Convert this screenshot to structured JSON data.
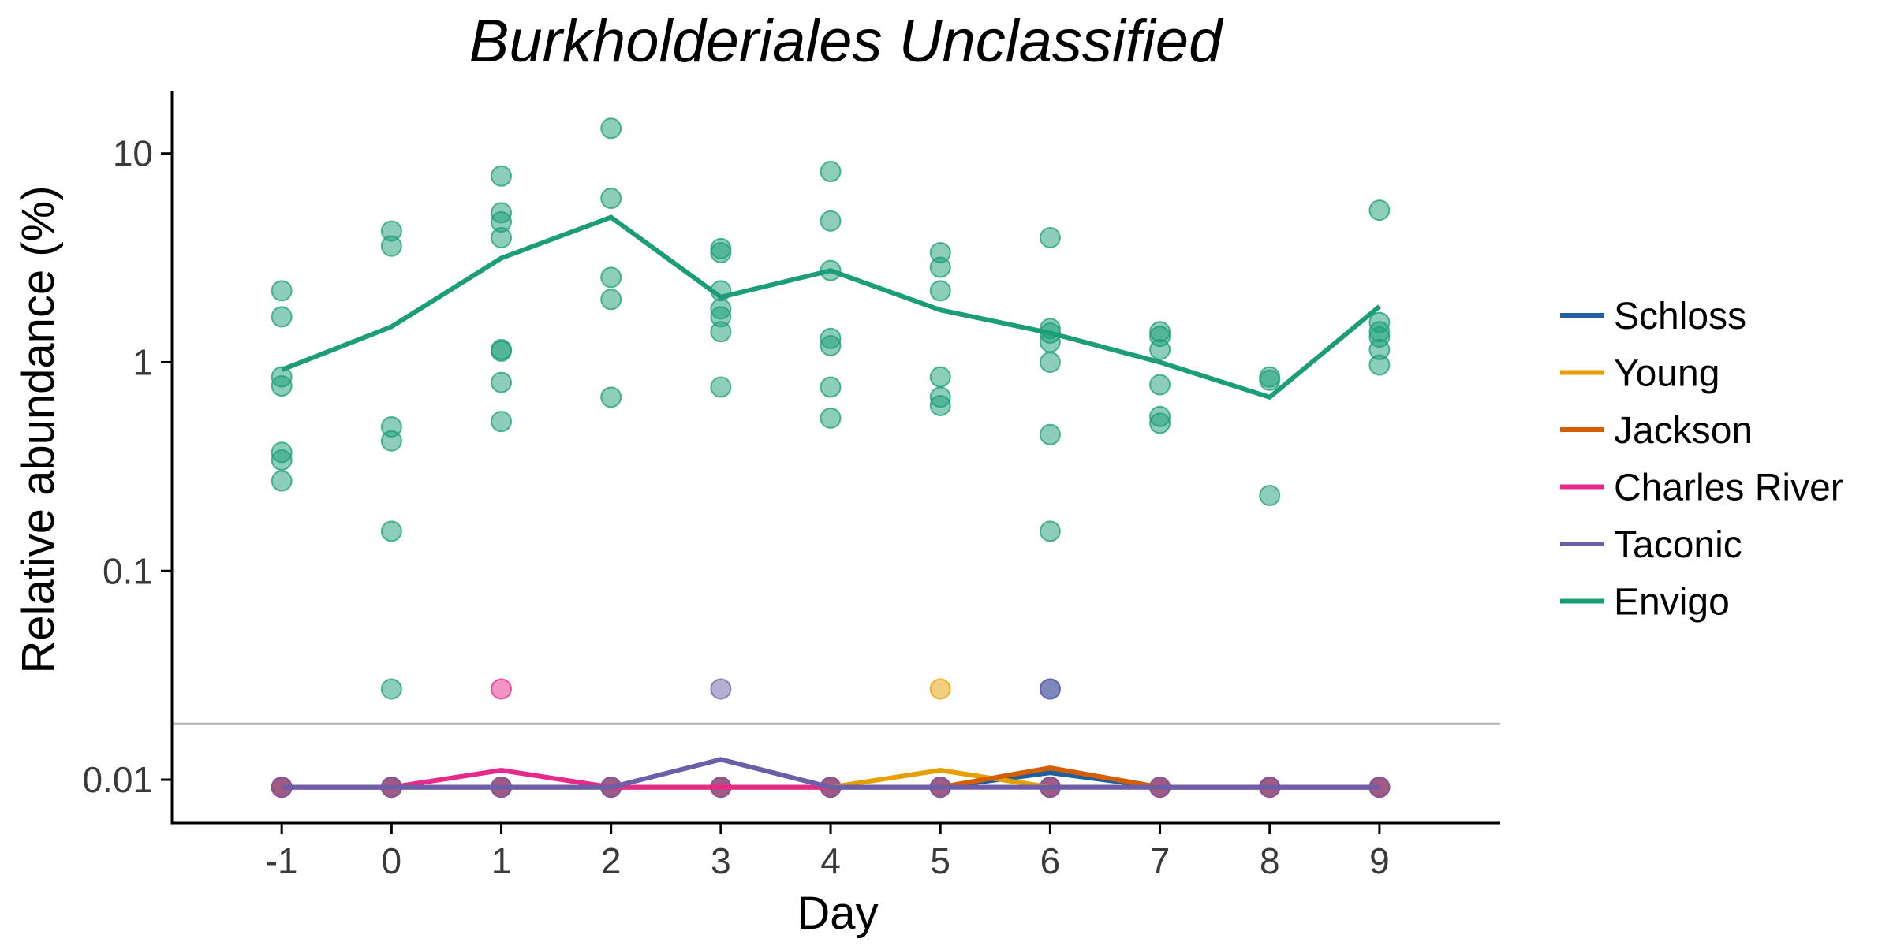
{
  "chart_data": {
    "type": "scatter",
    "title": "Burkholderiales Unclassified",
    "xlabel": "Day",
    "ylabel": "Relative abundance (%)",
    "x_ticks": [
      -1,
      0,
      1,
      2,
      3,
      4,
      5,
      6,
      7,
      8,
      9
    ],
    "y_scale": "log",
    "y_ticks": [
      0.01,
      0.1,
      1,
      10
    ],
    "y_tick_labels": [
      "0.01",
      "0.1",
      "1",
      "10"
    ],
    "xlim": [
      -2,
      10.1
    ],
    "ylim": [
      0.0062,
      20
    ],
    "limit_of_detection": 0.0185,
    "grid": false,
    "legend_position": "right",
    "series": [
      {
        "name": "Schloss",
        "color": "#1f5f9e",
        "line": [
          [
            -1,
            0.0092
          ],
          [
            0,
            0.0092
          ],
          [
            1,
            0.0092
          ],
          [
            2,
            0.0092
          ],
          [
            3,
            0.0092
          ],
          [
            4,
            0.0092
          ],
          [
            5,
            0.0092
          ],
          [
            6,
            0.0108
          ],
          [
            7,
            0.0092
          ],
          [
            8,
            0.0092
          ],
          [
            9,
            0.0092
          ]
        ],
        "points": [
          [
            -1,
            0.0092
          ],
          [
            0,
            0.0092
          ],
          [
            1,
            0.0092
          ],
          [
            2,
            0.0092
          ],
          [
            3,
            0.0092
          ],
          [
            4,
            0.0092
          ],
          [
            5,
            0.0092
          ],
          [
            6,
            0.0092
          ],
          [
            6,
            0.0272
          ],
          [
            7,
            0.0092
          ],
          [
            8,
            0.0092
          ],
          [
            9,
            0.0092
          ]
        ]
      },
      {
        "name": "Young",
        "color": "#e69f00",
        "line": [
          [
            -1,
            0.0092
          ],
          [
            0,
            0.0092
          ],
          [
            1,
            0.0092
          ],
          [
            2,
            0.0092
          ],
          [
            3,
            0.0092
          ],
          [
            4,
            0.0092
          ],
          [
            5,
            0.0111
          ],
          [
            6,
            0.0092
          ],
          [
            7,
            0.0092
          ],
          [
            8,
            0.0092
          ],
          [
            9,
            0.0092
          ]
        ],
        "points": [
          [
            -1,
            0.0092
          ],
          [
            0,
            0.0092
          ],
          [
            1,
            0.0092
          ],
          [
            2,
            0.0092
          ],
          [
            3,
            0.0092
          ],
          [
            4,
            0.0092
          ],
          [
            5,
            0.0092
          ],
          [
            5,
            0.0272
          ],
          [
            6,
            0.0092
          ],
          [
            7,
            0.0092
          ],
          [
            8,
            0.0092
          ],
          [
            9,
            0.0092
          ]
        ]
      },
      {
        "name": "Jackson",
        "color": "#d55e00",
        "line": [
          [
            -1,
            0.0092
          ],
          [
            0,
            0.0092
          ],
          [
            1,
            0.0092
          ],
          [
            2,
            0.0092
          ],
          [
            3,
            0.0092
          ],
          [
            4,
            0.0092
          ],
          [
            5,
            0.0092
          ],
          [
            6,
            0.0114
          ],
          [
            7,
            0.0092
          ],
          [
            8,
            0.0092
          ],
          [
            9,
            0.0092
          ]
        ],
        "points": [
          [
            -1,
            0.0092
          ],
          [
            0,
            0.0092
          ],
          [
            1,
            0.0092
          ],
          [
            2,
            0.0092
          ],
          [
            3,
            0.0092
          ],
          [
            4,
            0.0092
          ],
          [
            5,
            0.0092
          ],
          [
            6,
            0.0092
          ],
          [
            7,
            0.0092
          ],
          [
            8,
            0.0092
          ],
          [
            9,
            0.0092
          ]
        ]
      },
      {
        "name": "Charles River",
        "color": "#e7298a",
        "line": [
          [
            -1,
            0.0092
          ],
          [
            0,
            0.0092
          ],
          [
            1,
            0.0111
          ],
          [
            2,
            0.0092
          ],
          [
            3,
            0.0092
          ],
          [
            4,
            0.0092
          ],
          [
            5,
            0.0092
          ],
          [
            6,
            0.0092
          ],
          [
            7,
            0.0092
          ],
          [
            8,
            0.0092
          ],
          [
            9,
            0.0092
          ]
        ],
        "points": [
          [
            -1,
            0.0092
          ],
          [
            0,
            0.0092
          ],
          [
            1,
            0.0092
          ],
          [
            1,
            0.0272
          ],
          [
            2,
            0.0092
          ],
          [
            3,
            0.0092
          ],
          [
            4,
            0.0092
          ],
          [
            5,
            0.0092
          ],
          [
            6,
            0.0092
          ],
          [
            7,
            0.0092
          ],
          [
            8,
            0.0092
          ],
          [
            9,
            0.0092
          ]
        ]
      },
      {
        "name": "Taconic",
        "color": "#6a5fa8",
        "line": [
          [
            -1,
            0.0092
          ],
          [
            0,
            0.0092
          ],
          [
            1,
            0.0092
          ],
          [
            2,
            0.0092
          ],
          [
            3,
            0.0125
          ],
          [
            4,
            0.0092
          ],
          [
            5,
            0.0092
          ],
          [
            6,
            0.0092
          ],
          [
            7,
            0.0092
          ],
          [
            8,
            0.0092
          ],
          [
            9,
            0.0092
          ]
        ],
        "points": [
          [
            -1,
            0.0092
          ],
          [
            0,
            0.0092
          ],
          [
            1,
            0.0092
          ],
          [
            2,
            0.0092
          ],
          [
            3,
            0.0092
          ],
          [
            3,
            0.0272
          ],
          [
            4,
            0.0092
          ],
          [
            5,
            0.0092
          ],
          [
            6,
            0.0092
          ],
          [
            6,
            0.0272
          ],
          [
            7,
            0.0092
          ],
          [
            8,
            0.0092
          ],
          [
            9,
            0.0092
          ]
        ]
      },
      {
        "name": "Envigo",
        "color": "#1b9e77",
        "line": [
          [
            -1,
            0.92
          ],
          [
            0,
            1.48
          ],
          [
            1,
            3.15
          ],
          [
            2,
            4.95
          ],
          [
            3,
            2.05
          ],
          [
            4,
            2.75
          ],
          [
            5,
            1.78
          ],
          [
            6,
            1.38
          ],
          [
            7,
            1.0
          ],
          [
            8,
            0.68
          ],
          [
            9,
            1.85
          ]
        ],
        "points": [
          [
            -1,
            2.2
          ],
          [
            -1,
            1.65
          ],
          [
            -1,
            0.85
          ],
          [
            -1,
            0.77
          ],
          [
            -1,
            0.37
          ],
          [
            -1,
            0.34
          ],
          [
            -1,
            0.27
          ],
          [
            0,
            4.25
          ],
          [
            0,
            3.6
          ],
          [
            0,
            0.49
          ],
          [
            0,
            0.42
          ],
          [
            0,
            0.155
          ],
          [
            0,
            0.0272
          ],
          [
            1,
            7.8
          ],
          [
            1,
            5.2
          ],
          [
            1,
            4.7
          ],
          [
            1,
            3.95
          ],
          [
            1,
            1.15
          ],
          [
            1,
            1.13
          ],
          [
            1,
            0.8
          ],
          [
            1,
            0.52
          ],
          [
            2,
            13.2
          ],
          [
            2,
            6.1
          ],
          [
            2,
            2.55
          ],
          [
            2,
            2.0
          ],
          [
            2,
            0.68
          ],
          [
            3,
            3.5
          ],
          [
            3,
            3.35
          ],
          [
            3,
            2.2
          ],
          [
            3,
            1.8
          ],
          [
            3,
            1.65
          ],
          [
            3,
            1.4
          ],
          [
            3,
            0.76
          ],
          [
            4,
            8.2
          ],
          [
            4,
            4.75
          ],
          [
            4,
            2.75
          ],
          [
            4,
            1.3
          ],
          [
            4,
            1.2
          ],
          [
            4,
            0.76
          ],
          [
            4,
            0.54
          ],
          [
            5,
            3.35
          ],
          [
            5,
            2.85
          ],
          [
            5,
            2.2
          ],
          [
            5,
            0.85
          ],
          [
            5,
            0.68
          ],
          [
            5,
            0.62
          ],
          [
            6,
            3.95
          ],
          [
            6,
            1.45
          ],
          [
            6,
            1.38
          ],
          [
            6,
            1.25
          ],
          [
            6,
            1.0
          ],
          [
            6,
            0.45
          ],
          [
            6,
            0.155
          ],
          [
            7,
            1.4
          ],
          [
            7,
            1.33
          ],
          [
            7,
            1.15
          ],
          [
            7,
            0.78
          ],
          [
            7,
            0.55
          ],
          [
            7,
            0.51
          ],
          [
            8,
            0.85
          ],
          [
            8,
            0.82
          ],
          [
            8,
            0.23
          ],
          [
            9,
            5.35
          ],
          [
            9,
            1.55
          ],
          [
            9,
            1.4
          ],
          [
            9,
            1.32
          ],
          [
            9,
            1.15
          ],
          [
            9,
            0.97
          ]
        ]
      }
    ]
  }
}
